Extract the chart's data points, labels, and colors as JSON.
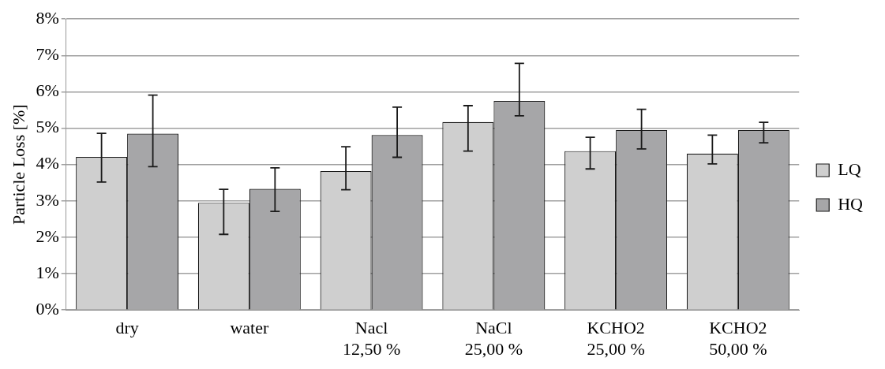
{
  "chart_data": {
    "type": "bar",
    "ylabel": "Particle Loss [%]",
    "categories": [
      "dry",
      "water",
      "Nacl 12,50 %",
      "NaCl 25,00 %",
      "KCHO2 25,00 %",
      "KCHO2 50,00 %"
    ],
    "series": [
      {
        "name": "LQ",
        "color": "#cfcfcf",
        "values": [
          4.21,
          2.95,
          3.82,
          5.17,
          4.37,
          4.3
        ],
        "errors": [
          [
            3.52,
            4.86
          ],
          [
            2.08,
            3.32
          ],
          [
            3.31,
            4.49
          ],
          [
            4.37,
            5.62
          ],
          [
            3.88,
            4.75
          ],
          [
            4.02,
            4.81
          ]
        ]
      },
      {
        "name": "HQ",
        "color": "#a6a6a8",
        "values": [
          4.85,
          3.33,
          4.81,
          5.75,
          4.95,
          4.95
        ],
        "errors": [
          [
            3.94,
            5.91
          ],
          [
            2.71,
            3.91
          ],
          [
            4.2,
            5.58
          ],
          [
            5.34,
            6.78
          ],
          [
            4.43,
            5.52
          ],
          [
            4.6,
            5.16
          ]
        ]
      }
    ],
    "ylim": [
      0,
      8
    ],
    "yticks": [
      {
        "value": 0,
        "label": "0%"
      },
      {
        "value": 1,
        "label": "1%"
      },
      {
        "value": 2,
        "label": "2%"
      },
      {
        "value": 3,
        "label": "3%"
      },
      {
        "value": 4,
        "label": "4%"
      },
      {
        "value": 5,
        "label": "5%"
      },
      {
        "value": 6,
        "label": "6%"
      },
      {
        "value": 7,
        "label": "7%"
      },
      {
        "value": 8,
        "label": "8%"
      }
    ],
    "grid": "y",
    "legend": "right"
  }
}
